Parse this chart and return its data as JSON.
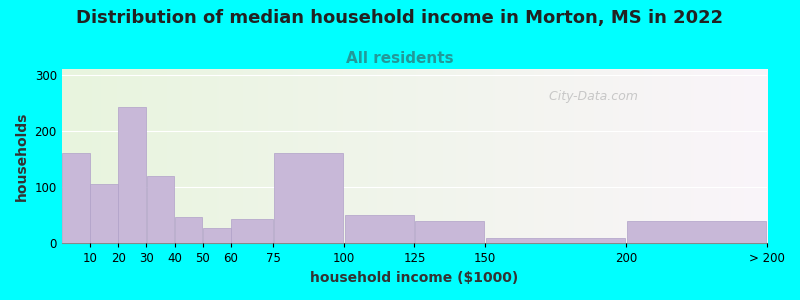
{
  "title": "Distribution of median household income in Morton, MS in 2022",
  "subtitle": "All residents",
  "xlabel": "household income ($1000)",
  "ylabel": "households",
  "background_outer": "#00FFFF",
  "bar_color": "#c8b8d8",
  "bar_edge_color": "#b0a0c8",
  "title_fontsize": 13,
  "title_color": "#222222",
  "subtitle_fontsize": 11,
  "subtitle_color": "#229999",
  "xlabel_fontsize": 10,
  "ylabel_fontsize": 10,
  "watermark": "  City-Data.com",
  "values": [
    160,
    105,
    243,
    120,
    47,
    28,
    43,
    160,
    50,
    40,
    10,
    40
  ],
  "bin_lefts": [
    0,
    10,
    20,
    30,
    40,
    50,
    60,
    75,
    100,
    125,
    150,
    200
  ],
  "bin_rights": [
    10,
    20,
    30,
    40,
    50,
    60,
    75,
    100,
    125,
    150,
    200,
    250
  ],
  "xtick_pos": [
    10,
    20,
    30,
    40,
    50,
    60,
    75,
    100,
    125,
    150,
    200,
    250
  ],
  "xtick_labels": [
    "10",
    "20",
    "30",
    "40",
    "50",
    "60",
    "75",
    "100",
    "125",
    "150",
    "200",
    "> 200"
  ],
  "xlim": [
    0,
    250
  ],
  "ylim": [
    0,
    310
  ],
  "yticks": [
    0,
    100,
    200,
    300
  ]
}
